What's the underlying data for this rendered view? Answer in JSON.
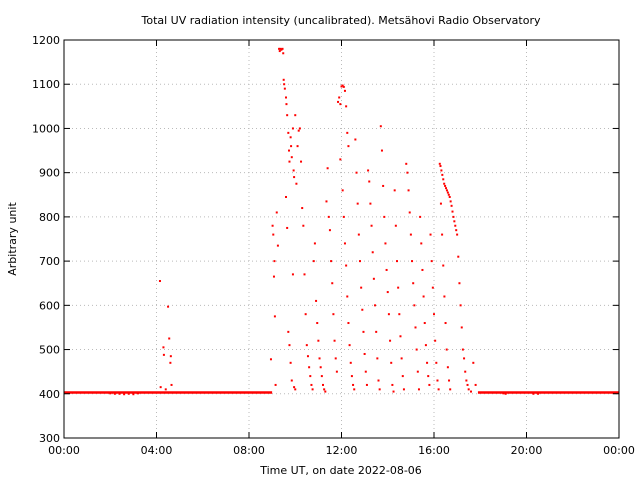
{
  "chart_data": {
    "type": "scatter",
    "title": "Total UV radiation intensity (uncalibrated). Metsähovi Radio Observatory",
    "xlabel": "Time UT, on date 2022-08-06",
    "ylabel": "Arbitrary unit",
    "x_unit": "hours UT",
    "xlim": [
      0,
      24
    ],
    "ylim": [
      300,
      1200
    ],
    "x_ticks": [
      0,
      4,
      8,
      12,
      16,
      20,
      24
    ],
    "x_tick_labels": [
      "00:00",
      "04:00",
      "08:00",
      "12:00",
      "16:00",
      "20:00",
      "00:00"
    ],
    "y_ticks": [
      300,
      400,
      500,
      600,
      700,
      800,
      900,
      1000,
      1100,
      1200
    ],
    "y_tick_labels": [
      "300",
      "400",
      "500",
      "600",
      "700",
      "800",
      "900",
      "1000",
      "1100",
      "1200"
    ],
    "grid": true,
    "marker_color": "#ff0000",
    "baseline": {
      "value": 403,
      "segments": [
        [
          0,
          9.0
        ],
        [
          17.9,
          24
        ]
      ]
    },
    "points": [
      [
        2.0,
        401
      ],
      [
        2.2,
        400
      ],
      [
        2.4,
        400
      ],
      [
        2.6,
        399
      ],
      [
        2.8,
        400
      ],
      [
        3.0,
        399
      ],
      [
        3.2,
        401
      ],
      [
        4.15,
        655
      ],
      [
        4.18,
        415
      ],
      [
        4.3,
        505
      ],
      [
        4.32,
        488
      ],
      [
        4.4,
        410
      ],
      [
        4.5,
        597
      ],
      [
        4.55,
        525
      ],
      [
        4.6,
        470
      ],
      [
        4.62,
        485
      ],
      [
        4.65,
        420
      ],
      [
        8.95,
        478
      ],
      [
        9.02,
        780
      ],
      [
        9.05,
        760
      ],
      [
        9.08,
        665
      ],
      [
        9.1,
        700
      ],
      [
        9.12,
        575
      ],
      [
        9.15,
        420
      ],
      [
        9.2,
        810
      ],
      [
        9.25,
        735
      ],
      [
        9.3,
        1180
      ],
      [
        9.33,
        1175
      ],
      [
        9.36,
        1180
      ],
      [
        9.4,
        1178
      ],
      [
        9.45,
        1180
      ],
      [
        9.48,
        1170
      ],
      [
        9.5,
        1110
      ],
      [
        9.52,
        1100
      ],
      [
        9.55,
        1090
      ],
      [
        9.6,
        1070
      ],
      [
        9.62,
        1055
      ],
      [
        9.65,
        1030
      ],
      [
        9.7,
        990
      ],
      [
        9.73,
        950
      ],
      [
        9.75,
        925
      ],
      [
        9.8,
        980
      ],
      [
        9.82,
        960
      ],
      [
        9.85,
        935
      ],
      [
        9.9,
        1000
      ],
      [
        9.93,
        905
      ],
      [
        9.95,
        890
      ],
      [
        10.0,
        1030
      ],
      [
        10.05,
        875
      ],
      [
        10.1,
        960
      ],
      [
        10.15,
        995
      ],
      [
        10.2,
        1000
      ],
      [
        10.25,
        925
      ],
      [
        9.6,
        845
      ],
      [
        9.65,
        775
      ],
      [
        9.7,
        540
      ],
      [
        9.75,
        510
      ],
      [
        9.8,
        470
      ],
      [
        9.85,
        430
      ],
      [
        9.9,
        670
      ],
      [
        9.95,
        415
      ],
      [
        10.0,
        410
      ],
      [
        10.3,
        820
      ],
      [
        10.35,
        780
      ],
      [
        10.4,
        670
      ],
      [
        10.45,
        580
      ],
      [
        10.5,
        510
      ],
      [
        10.55,
        485
      ],
      [
        10.6,
        460
      ],
      [
        10.65,
        440
      ],
      [
        10.7,
        420
      ],
      [
        10.75,
        410
      ],
      [
        10.8,
        700
      ],
      [
        10.85,
        740
      ],
      [
        10.9,
        610
      ],
      [
        10.95,
        560
      ],
      [
        11.0,
        520
      ],
      [
        11.05,
        480
      ],
      [
        11.1,
        460
      ],
      [
        11.15,
        440
      ],
      [
        11.2,
        420
      ],
      [
        11.25,
        410
      ],
      [
        11.3,
        405
      ],
      [
        11.35,
        835
      ],
      [
        11.4,
        910
      ],
      [
        11.45,
        800
      ],
      [
        11.5,
        770
      ],
      [
        11.55,
        700
      ],
      [
        11.6,
        650
      ],
      [
        11.65,
        580
      ],
      [
        11.7,
        520
      ],
      [
        11.75,
        480
      ],
      [
        11.8,
        450
      ],
      [
        11.85,
        1060
      ],
      [
        11.9,
        1070
      ],
      [
        11.95,
        1055
      ],
      [
        12.0,
        1095
      ],
      [
        12.05,
        1097
      ],
      [
        12.1,
        1094
      ],
      [
        12.15,
        1085
      ],
      [
        12.2,
        1050
      ],
      [
        12.25,
        990
      ],
      [
        12.3,
        960
      ],
      [
        11.95,
        930
      ],
      [
        12.05,
        860
      ],
      [
        12.1,
        800
      ],
      [
        12.15,
        740
      ],
      [
        12.2,
        690
      ],
      [
        12.25,
        620
      ],
      [
        12.3,
        560
      ],
      [
        12.35,
        510
      ],
      [
        12.4,
        470
      ],
      [
        12.45,
        440
      ],
      [
        12.5,
        420
      ],
      [
        12.55,
        410
      ],
      [
        12.6,
        975
      ],
      [
        12.65,
        900
      ],
      [
        12.7,
        830
      ],
      [
        12.75,
        760
      ],
      [
        12.8,
        700
      ],
      [
        12.85,
        640
      ],
      [
        12.9,
        590
      ],
      [
        12.95,
        540
      ],
      [
        13.0,
        490
      ],
      [
        13.05,
        450
      ],
      [
        13.1,
        420
      ],
      [
        13.15,
        905
      ],
      [
        13.2,
        880
      ],
      [
        13.25,
        830
      ],
      [
        13.3,
        780
      ],
      [
        13.35,
        720
      ],
      [
        13.4,
        660
      ],
      [
        13.45,
        600
      ],
      [
        13.5,
        540
      ],
      [
        13.55,
        480
      ],
      [
        13.6,
        430
      ],
      [
        13.65,
        410
      ],
      [
        13.7,
        1005
      ],
      [
        13.75,
        950
      ],
      [
        13.8,
        870
      ],
      [
        13.85,
        800
      ],
      [
        13.9,
        740
      ],
      [
        13.95,
        680
      ],
      [
        14.0,
        630
      ],
      [
        14.05,
        580
      ],
      [
        14.1,
        520
      ],
      [
        14.15,
        470
      ],
      [
        14.2,
        420
      ],
      [
        14.25,
        405
      ],
      [
        14.3,
        860
      ],
      [
        14.35,
        780
      ],
      [
        14.4,
        700
      ],
      [
        14.45,
        640
      ],
      [
        14.5,
        580
      ],
      [
        14.55,
        530
      ],
      [
        14.6,
        480
      ],
      [
        14.65,
        440
      ],
      [
        14.7,
        410
      ],
      [
        14.8,
        920
      ],
      [
        14.85,
        900
      ],
      [
        14.9,
        860
      ],
      [
        14.95,
        810
      ],
      [
        15.0,
        760
      ],
      [
        15.05,
        700
      ],
      [
        15.1,
        650
      ],
      [
        15.15,
        600
      ],
      [
        15.2,
        550
      ],
      [
        15.25,
        500
      ],
      [
        15.3,
        450
      ],
      [
        15.35,
        410
      ],
      [
        15.4,
        800
      ],
      [
        15.45,
        740
      ],
      [
        15.5,
        680
      ],
      [
        15.55,
        620
      ],
      [
        15.6,
        560
      ],
      [
        15.65,
        510
      ],
      [
        15.7,
        470
      ],
      [
        15.75,
        440
      ],
      [
        15.8,
        420
      ],
      [
        15.85,
        760
      ],
      [
        15.9,
        700
      ],
      [
        15.95,
        640
      ],
      [
        16.0,
        580
      ],
      [
        16.05,
        520
      ],
      [
        16.1,
        470
      ],
      [
        16.15,
        430
      ],
      [
        16.2,
        410
      ],
      [
        16.25,
        920
      ],
      [
        16.28,
        915
      ],
      [
        16.32,
        905
      ],
      [
        16.36,
        895
      ],
      [
        16.4,
        885
      ],
      [
        16.44,
        875
      ],
      [
        16.48,
        870
      ],
      [
        16.52,
        865
      ],
      [
        16.56,
        860
      ],
      [
        16.6,
        855
      ],
      [
        16.64,
        850
      ],
      [
        16.68,
        845
      ],
      [
        16.72,
        835
      ],
      [
        16.76,
        825
      ],
      [
        16.8,
        812
      ],
      [
        16.84,
        800
      ],
      [
        16.88,
        790
      ],
      [
        16.92,
        780
      ],
      [
        16.96,
        770
      ],
      [
        17.0,
        760
      ],
      [
        16.3,
        830
      ],
      [
        16.35,
        760
      ],
      [
        16.4,
        690
      ],
      [
        16.45,
        620
      ],
      [
        16.5,
        560
      ],
      [
        16.55,
        500
      ],
      [
        16.6,
        460
      ],
      [
        16.65,
        430
      ],
      [
        16.7,
        410
      ],
      [
        17.05,
        710
      ],
      [
        17.1,
        650
      ],
      [
        17.15,
        600
      ],
      [
        17.2,
        550
      ],
      [
        17.25,
        500
      ],
      [
        17.3,
        480
      ],
      [
        17.35,
        450
      ],
      [
        17.4,
        430
      ],
      [
        17.45,
        420
      ],
      [
        17.5,
        410
      ],
      [
        17.6,
        405
      ],
      [
        17.7,
        470
      ],
      [
        17.8,
        420
      ],
      [
        19.0,
        401
      ],
      [
        19.1,
        400
      ],
      [
        20.3,
        400
      ],
      [
        20.5,
        400
      ]
    ]
  }
}
